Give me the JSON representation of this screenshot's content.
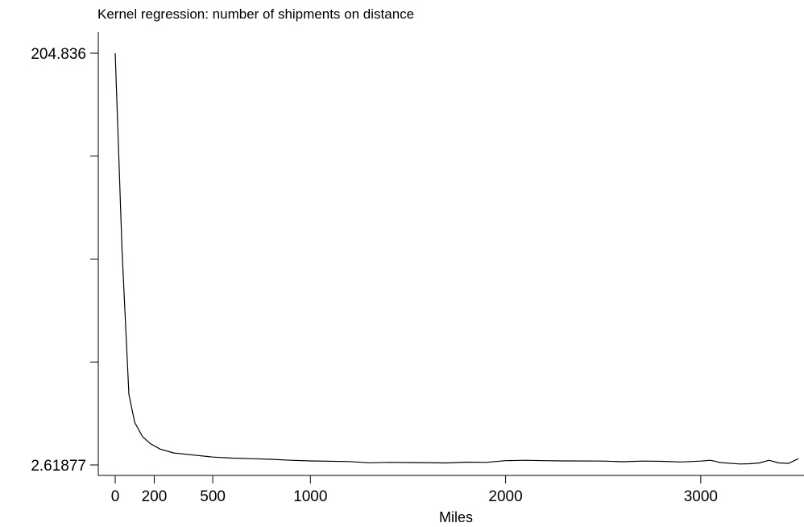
{
  "chart_data": {
    "type": "line",
    "title": "Kernel regression: number of shipments on distance",
    "xlabel": "Miles",
    "ylabel": "",
    "xlim": [
      0,
      3500
    ],
    "ylim": [
      2.61877,
      204.836
    ],
    "xticks": [
      0,
      200,
      500,
      1000,
      2000,
      3000
    ],
    "xtick_labels": [
      "0",
      "200",
      "500",
      "1000",
      "2000",
      "3000"
    ],
    "yticks": [
      2.61877,
      53.17308,
      103.72739,
      154.2817,
      204.836
    ],
    "ytick_labels": [
      "2.61877",
      "",
      "",
      "",
      "204.836"
    ],
    "grid": false,
    "series": [
      {
        "x": [
          0,
          35,
          70,
          100,
          140,
          180,
          230,
          300,
          400,
          500,
          600,
          700,
          800,
          900,
          1000,
          1200,
          1300,
          1400,
          1500,
          1700,
          1800,
          1900,
          2000,
          2100,
          2200,
          2300,
          2500,
          2600,
          2700,
          2800,
          2900,
          3000,
          3050,
          3100,
          3200,
          3250,
          3300,
          3350,
          3400,
          3450,
          3500
        ],
        "y": [
          204.836,
          108.0,
          37.2,
          23.5,
          16.5,
          13.1,
          10.4,
          8.5,
          7.5,
          6.5,
          6.0,
          5.7,
          5.4,
          4.9,
          4.6,
          4.3,
          3.7,
          3.9,
          3.8,
          3.6,
          4.0,
          3.9,
          4.7,
          4.9,
          4.7,
          4.6,
          4.5,
          4.2,
          4.5,
          4.4,
          4.1,
          4.5,
          4.9,
          3.8,
          3.1,
          3.2,
          3.6,
          4.9,
          3.6,
          3.4,
          5.7
        ]
      }
    ]
  }
}
